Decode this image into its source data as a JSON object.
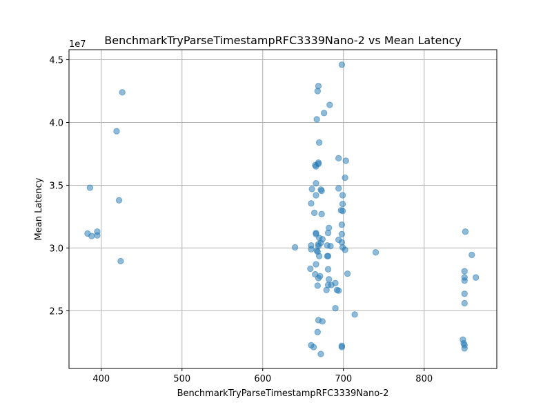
{
  "chart_data": {
    "type": "scatter",
    "title": "BenchmarkTryParseTimestampRFC3339Nano-2 vs Mean Latency",
    "xlabel": "BenchmarkTryParseTimestampRFC3339Nano-2",
    "ylabel": "Mean Latency",
    "y_offset_label": "1e7",
    "xlim": [
      360,
      890
    ],
    "ylim": [
      20400000,
      45800000
    ],
    "x_ticks": [
      400,
      500,
      600,
      700,
      800
    ],
    "x_tick_labels": [
      "400",
      "500",
      "600",
      "700",
      "800"
    ],
    "y_ticks": [
      25000000,
      30000000,
      35000000,
      40000000,
      45000000
    ],
    "y_tick_labels": [
      "2.5",
      "3.0",
      "3.5",
      "4.0",
      "4.5"
    ],
    "grid": true,
    "marker_color": "#1f77b4",
    "marker_alpha": 0.5,
    "points": [
      {
        "x": 383,
        "y": 31150000
      },
      {
        "x": 386,
        "y": 34800000
      },
      {
        "x": 388,
        "y": 30950000
      },
      {
        "x": 395,
        "y": 31300000
      },
      {
        "x": 395,
        "y": 31000000
      },
      {
        "x": 419,
        "y": 39300000
      },
      {
        "x": 422,
        "y": 33800000
      },
      {
        "x": 424,
        "y": 28950000
      },
      {
        "x": 426,
        "y": 42400000
      },
      {
        "x": 640,
        "y": 30050000
      },
      {
        "x": 660,
        "y": 30200000
      },
      {
        "x": 660,
        "y": 29900000
      },
      {
        "x": 659,
        "y": 28350000
      },
      {
        "x": 660,
        "y": 33550000
      },
      {
        "x": 661,
        "y": 34700000
      },
      {
        "x": 660,
        "y": 22250000
      },
      {
        "x": 663,
        "y": 22100000
      },
      {
        "x": 664,
        "y": 32800000
      },
      {
        "x": 665,
        "y": 27900000
      },
      {
        "x": 665,
        "y": 36600000
      },
      {
        "x": 666,
        "y": 36500000
      },
      {
        "x": 666,
        "y": 34200000
      },
      {
        "x": 666,
        "y": 35150000
      },
      {
        "x": 666,
        "y": 31200000
      },
      {
        "x": 666,
        "y": 31100000
      },
      {
        "x": 666,
        "y": 28700000
      },
      {
        "x": 667,
        "y": 40250000
      },
      {
        "x": 667,
        "y": 29800000
      },
      {
        "x": 668,
        "y": 29700000
      },
      {
        "x": 668,
        "y": 27000000
      },
      {
        "x": 668,
        "y": 42500000
      },
      {
        "x": 668,
        "y": 23300000
      },
      {
        "x": 669,
        "y": 36800000
      },
      {
        "x": 669,
        "y": 36700000
      },
      {
        "x": 669,
        "y": 30300000
      },
      {
        "x": 669,
        "y": 30150000
      },
      {
        "x": 669,
        "y": 27600000
      },
      {
        "x": 669,
        "y": 24250000
      },
      {
        "x": 669,
        "y": 42900000
      },
      {
        "x": 670,
        "y": 38400000
      },
      {
        "x": 670,
        "y": 30800000
      },
      {
        "x": 670,
        "y": 29350000
      },
      {
        "x": 671,
        "y": 27750000
      },
      {
        "x": 672,
        "y": 21550000
      },
      {
        "x": 672,
        "y": 34650000
      },
      {
        "x": 672,
        "y": 30400000
      },
      {
        "x": 673,
        "y": 34550000
      },
      {
        "x": 673,
        "y": 32700000
      },
      {
        "x": 674,
        "y": 30700000
      },
      {
        "x": 674,
        "y": 24150000
      },
      {
        "x": 676,
        "y": 40750000
      },
      {
        "x": 679,
        "y": 26650000
      },
      {
        "x": 680,
        "y": 30200000
      },
      {
        "x": 680,
        "y": 29350000
      },
      {
        "x": 681,
        "y": 29350000
      },
      {
        "x": 681,
        "y": 31200000
      },
      {
        "x": 681,
        "y": 28300000
      },
      {
        "x": 681,
        "y": 27050000
      },
      {
        "x": 682,
        "y": 31600000
      },
      {
        "x": 682,
        "y": 27500000
      },
      {
        "x": 683,
        "y": 41400000
      },
      {
        "x": 684,
        "y": 30150000
      },
      {
        "x": 685,
        "y": 27050000
      },
      {
        "x": 690,
        "y": 27200000
      },
      {
        "x": 690,
        "y": 25200000
      },
      {
        "x": 692,
        "y": 26650000
      },
      {
        "x": 694,
        "y": 26600000
      },
      {
        "x": 694,
        "y": 30650000
      },
      {
        "x": 694,
        "y": 34750000
      },
      {
        "x": 694,
        "y": 37150000
      },
      {
        "x": 697,
        "y": 33000000
      },
      {
        "x": 698,
        "y": 30450000
      },
      {
        "x": 698,
        "y": 31850000
      },
      {
        "x": 698,
        "y": 31100000
      },
      {
        "x": 698,
        "y": 22100000
      },
      {
        "x": 698,
        "y": 22200000
      },
      {
        "x": 698,
        "y": 44600000
      },
      {
        "x": 699,
        "y": 33500000
      },
      {
        "x": 699,
        "y": 34200000
      },
      {
        "x": 699,
        "y": 32950000
      },
      {
        "x": 699,
        "y": 30050000
      },
      {
        "x": 702,
        "y": 35600000
      },
      {
        "x": 702,
        "y": 29850000
      },
      {
        "x": 703,
        "y": 36950000
      },
      {
        "x": 705,
        "y": 27950000
      },
      {
        "x": 714,
        "y": 24700000
      },
      {
        "x": 740,
        "y": 29650000
      },
      {
        "x": 848,
        "y": 22700000
      },
      {
        "x": 849,
        "y": 22400000
      },
      {
        "x": 850,
        "y": 22250000
      },
      {
        "x": 850,
        "y": 22000000
      },
      {
        "x": 850,
        "y": 25600000
      },
      {
        "x": 850,
        "y": 26350000
      },
      {
        "x": 850,
        "y": 27400000
      },
      {
        "x": 850,
        "y": 27650000
      },
      {
        "x": 850,
        "y": 28150000
      },
      {
        "x": 851,
        "y": 31300000
      },
      {
        "x": 859,
        "y": 29450000
      },
      {
        "x": 864,
        "y": 27650000
      }
    ]
  }
}
